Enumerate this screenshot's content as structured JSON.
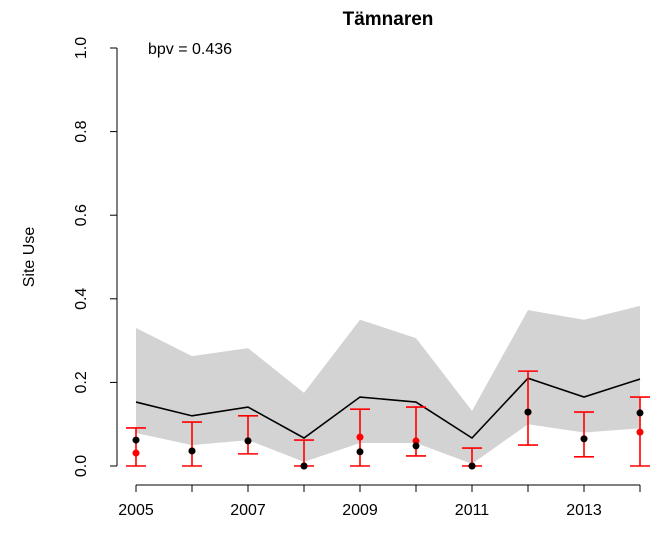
{
  "chart_data": {
    "type": "line",
    "title": "Tämnaren",
    "ylabel": "Site Use",
    "annotation": "bpv = 0.436",
    "x": [
      2005,
      2006,
      2007,
      2008,
      2009,
      2010,
      2011,
      2012,
      2013,
      2014
    ],
    "xlim": [
      2005,
      2014
    ],
    "xticks": [
      2005,
      2007,
      2009,
      2011,
      2013
    ],
    "ylim": [
      0,
      1
    ],
    "yticks": [
      {
        "value": 0,
        "label": "0.0"
      },
      {
        "value": 0.2,
        "label": "0.2"
      },
      {
        "value": 0.4,
        "label": "0.4"
      },
      {
        "value": 0.6,
        "label": "0.6"
      },
      {
        "value": 0.8,
        "label": "0.8"
      },
      {
        "value": 1,
        "label": "1.0"
      }
    ],
    "band": {
      "color": "#d3d3d3",
      "upper": [
        0.33,
        0.263,
        0.282,
        0.175,
        0.35,
        0.306,
        0.132,
        0.373,
        0.35,
        0.383
      ],
      "lower": [
        0.079,
        0.05,
        0.062,
        0.01,
        0.055,
        0.055,
        0.005,
        0.1,
        0.08,
        0.09
      ]
    },
    "series": [
      {
        "kind": "line",
        "color": "#000000",
        "values": [
          0.153,
          0.12,
          0.141,
          0.067,
          0.165,
          0.153,
          0.067,
          0.21,
          0.165,
          0.208
        ]
      },
      {
        "kind": "points",
        "color": "#ff0000",
        "values": [
          0.031,
          0.036,
          0.06,
          0,
          0.069,
          0.06,
          0,
          0.129,
          0.065,
          0.081
        ],
        "upper": [
          0.091,
          0.105,
          0.12,
          0.062,
          0.136,
          0.141,
          0.043,
          0.227,
          0.129,
          0.165
        ],
        "lower": [
          0,
          0,
          0.029,
          0,
          0,
          0.024,
          0,
          0.05,
          0.022,
          0
        ]
      },
      {
        "kind": "points",
        "color": "#000000",
        "values": [
          0.062,
          0.036,
          0.06,
          0,
          0.034,
          0.048,
          0,
          0.129,
          0.065,
          0.127
        ]
      }
    ]
  }
}
